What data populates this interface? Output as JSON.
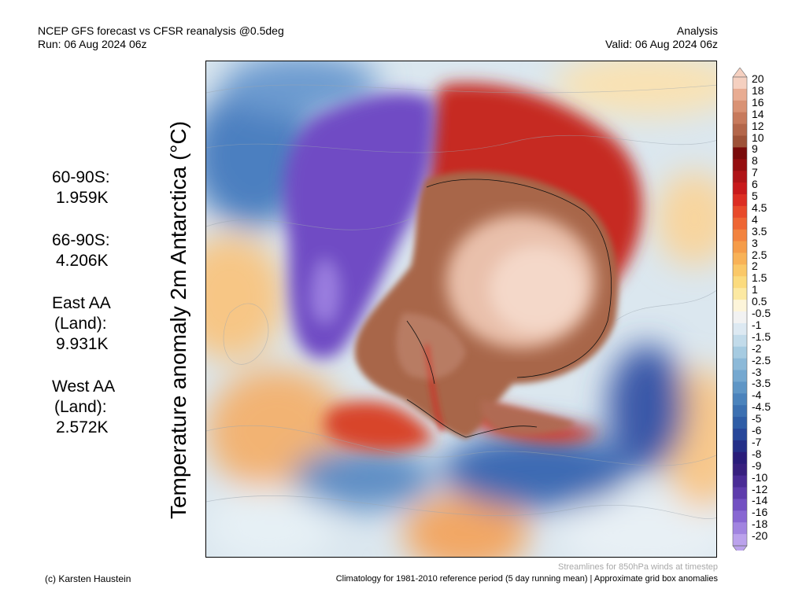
{
  "header": {
    "line1": "NCEP GFS forecast vs CFSR reanalysis @0.5deg",
    "line2": "Run: 06 Aug 2024 06z",
    "right1": "Analysis",
    "right2": "Valid: 06 Aug 2024 06z"
  },
  "vertical_title": "Temperature anomaly 2m Antarctica (°C)",
  "stats": [
    {
      "label": "60-90S:",
      "value": "1.959K"
    },
    {
      "label": "66-90S:",
      "value": "4.206K"
    },
    {
      "label": "East AA",
      "label2": "(Land):",
      "value": "9.931K"
    },
    {
      "label": "West AA",
      "label2": "(Land):",
      "value": "2.572K"
    }
  ],
  "colorbar": {
    "labels": [
      "20",
      "18",
      "16",
      "14",
      "12",
      "10",
      "9",
      "8",
      "7",
      "6",
      "5",
      "4.5",
      "4",
      "3.5",
      "3",
      "2.5",
      "2",
      "1.5",
      "1",
      "0.5",
      "-0.5",
      "-1",
      "-1.5",
      "-2",
      "-2.5",
      "-3",
      "-3.5",
      "-4",
      "-4.5",
      "-5",
      "-6",
      "-7",
      "-8",
      "-9",
      "-10",
      "-12",
      "-14",
      "-16",
      "-18",
      "-20"
    ],
    "colors": [
      "#f5d0c0",
      "#e8ac92",
      "#d99274",
      "#c77a5c",
      "#b3664a",
      "#9e5238",
      "#7a0b0b",
      "#950f10",
      "#b01417",
      "#c8191b",
      "#dc2d22",
      "#e84a2a",
      "#ee6634",
      "#f2833f",
      "#f59c49",
      "#f8b257",
      "#fac868",
      "#fbdb7e",
      "#fce9a2",
      "#fdf5da",
      "#f2f2f2",
      "#dde9f2",
      "#c2dbea",
      "#a6cbe1",
      "#8cb9d8",
      "#75a8d0",
      "#5f96c6",
      "#4b83bc",
      "#3c70b1",
      "#2f5da6",
      "#27479a",
      "#242f88",
      "#291c7a",
      "#37207f",
      "#4a2c96",
      "#5e3cac",
      "#7250c2",
      "#8867d2",
      "#a184e0",
      "#bba2ec"
    ]
  },
  "footer": {
    "streamlines": "Streamlines for 850hPa winds at timestep",
    "climatology": "Climatology for 1981-2010 reference period (5 day running mean) | Approximate grid box anomalies",
    "copyright": "(c) Karsten Haustein"
  }
}
